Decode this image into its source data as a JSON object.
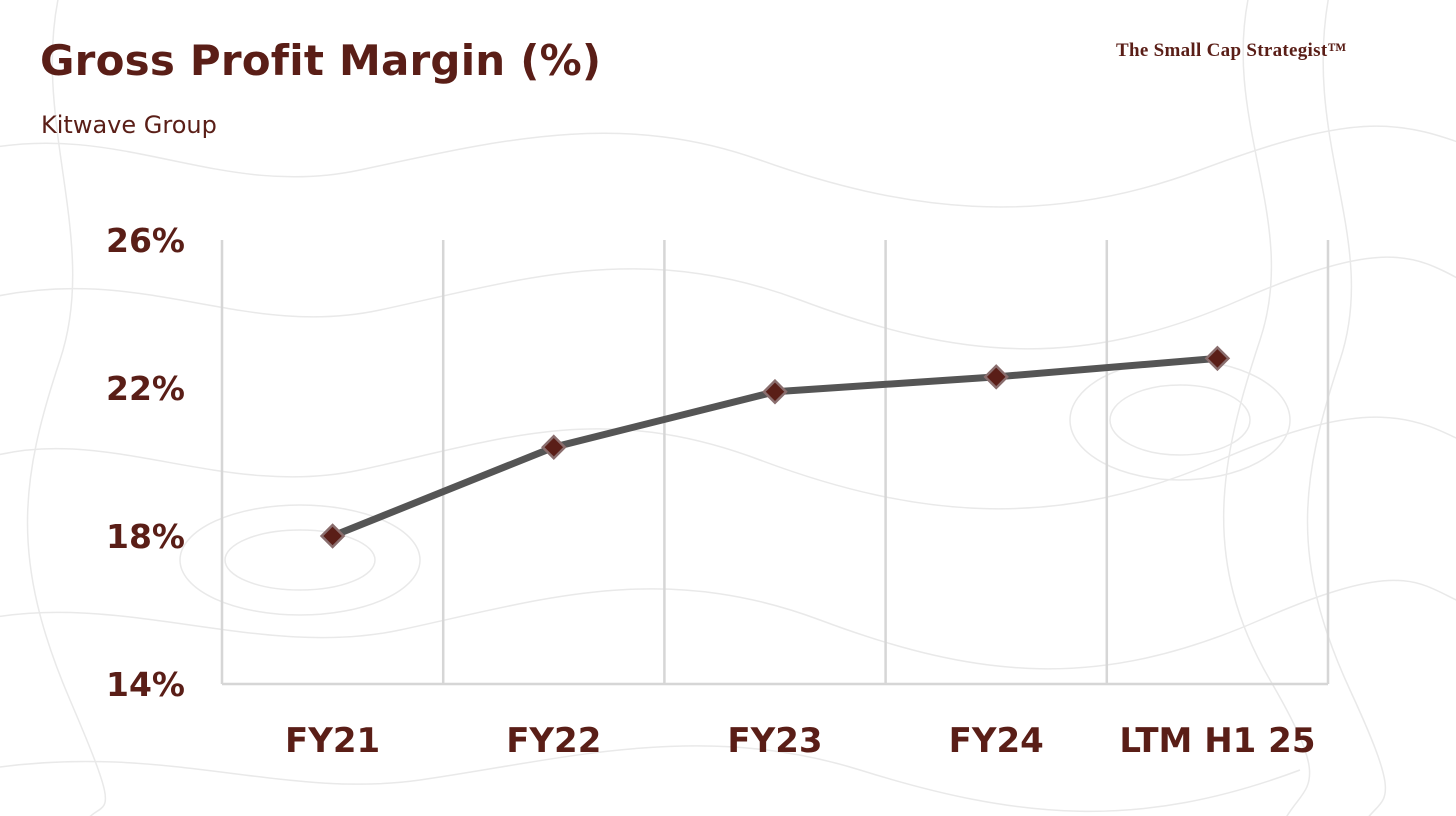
{
  "header": {
    "title": "Gross Profit Margin (%)",
    "subtitle": "Kitwave Group",
    "brand": "The Small Cap Strategist™"
  },
  "colors": {
    "text": "#5a1e17",
    "line": "#555555",
    "marker_fill": "#5a1e17",
    "marker_stroke": "#8a6e6e",
    "grid": "#d6d6d6"
  },
  "chart_data": {
    "type": "line",
    "categories": [
      "FY21",
      "FY22",
      "FY23",
      "FY24",
      "LTM H1 25"
    ],
    "series": [
      {
        "values": [
          18.0,
          20.4,
          21.9,
          22.3,
          22.8
        ]
      }
    ],
    "ylim": [
      14,
      26
    ],
    "yticks": [
      14,
      18,
      22,
      26
    ],
    "ytick_labels": [
      "14%",
      "18%",
      "22%",
      "26%"
    ],
    "grid": "vertical",
    "marker": "diamond"
  }
}
